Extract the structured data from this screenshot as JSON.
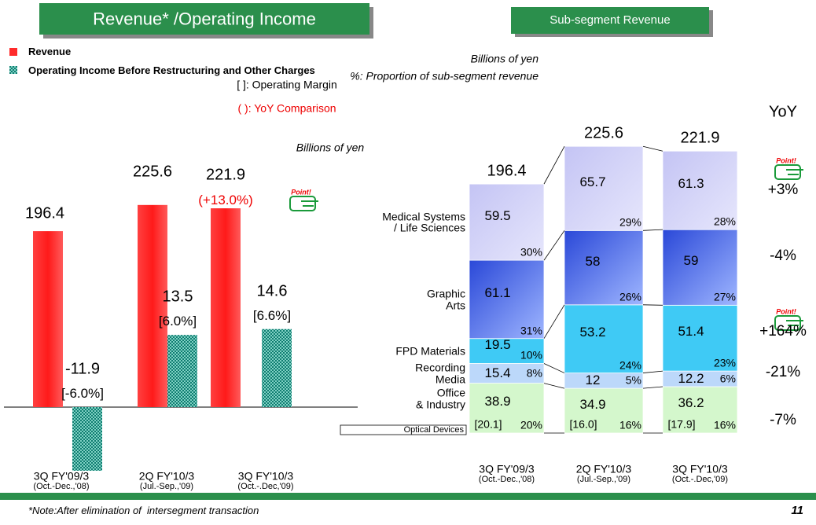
{
  "header": {
    "left_title": "Revenue* /Operating Income",
    "right_title": "Sub-segment Revenue"
  },
  "point_badge": "Point!",
  "chart_data": [
    {
      "type": "bar",
      "unit": "Billions of yen",
      "margin_note": "[ ]: Operating Margin",
      "yoy_note": "( ): YoY Comparison",
      "categories": [
        "3Q FY'09/3",
        "2Q FY'10/3",
        "3Q FY'10/3"
      ],
      "periods": [
        "(Oct.-Dec.,'08)",
        "(Jul.-Sep.,'09)",
        "(Oct.-.Dec,'09)"
      ],
      "series": [
        {
          "name": "Revenue",
          "color": "#ff2b2b",
          "values": [
            196.4,
            225.6,
            221.9
          ]
        },
        {
          "name": "Operating Income Before Restructuring and Other Charges",
          "color": "#0f7d70",
          "values": [
            -11.9,
            13.5,
            14.6
          ],
          "margin_labels": [
            "[-6.0%]",
            "[6.0%]",
            "[6.6%]"
          ]
        }
      ],
      "yoy_label": "(+13.0%)"
    },
    {
      "type": "stacked_bar",
      "unit": "Billions of yen",
      "subtitle": "%: Proportion of sub-segment revenue",
      "yoy_header": "YoY",
      "categories": [
        "3Q FY'09/3",
        "2Q FY'10/3",
        "3Q FY'10/3"
      ],
      "periods": [
        "(Oct.-Dec.,'08)",
        "(Jul.-Sep.,'09)",
        "(Oct.-.Dec,'09)"
      ],
      "totals": [
        196.4,
        225.6,
        221.9
      ],
      "series": [
        {
          "name": "Office\n& Industry",
          "color": "#d4f7cc",
          "values": [
            38.9,
            34.9,
            36.2
          ],
          "shares": [
            "20%",
            "16%",
            "16%"
          ],
          "yoy": "-7%"
        },
        {
          "name": "Recording\nMedia",
          "color": "#bcd8fa",
          "values": [
            15.4,
            12.0,
            12.2
          ],
          "shares": [
            "8%",
            "5%",
            "6%"
          ],
          "yoy": "-21%"
        },
        {
          "name": "FPD Materials",
          "color": "#3fcaf5",
          "values": [
            19.5,
            53.2,
            51.4
          ],
          "shares": [
            "10%",
            "24%",
            "23%"
          ],
          "yoy": "+164%"
        },
        {
          "name": "Graphic\nArts",
          "color": "#4466e8",
          "values": [
            61.1,
            58.0,
            59.0
          ],
          "shares": [
            "31%",
            "26%",
            "27%"
          ],
          "yoy": "-4%"
        },
        {
          "name": "Medical Systems\n/ Life Sciences",
          "color": "#d2d2f8",
          "values": [
            59.5,
            65.7,
            61.3
          ],
          "shares": [
            "30%",
            "29%",
            "28%"
          ],
          "yoy": "+3%"
        }
      ],
      "optical_name": "Optical Devices",
      "optical_labels": [
        "[20.1]",
        "[16.0]",
        "[17.9]"
      ]
    }
  ],
  "footer": {
    "note": "*Note:After elimination of  intersegment transaction",
    "page": "11"
  }
}
